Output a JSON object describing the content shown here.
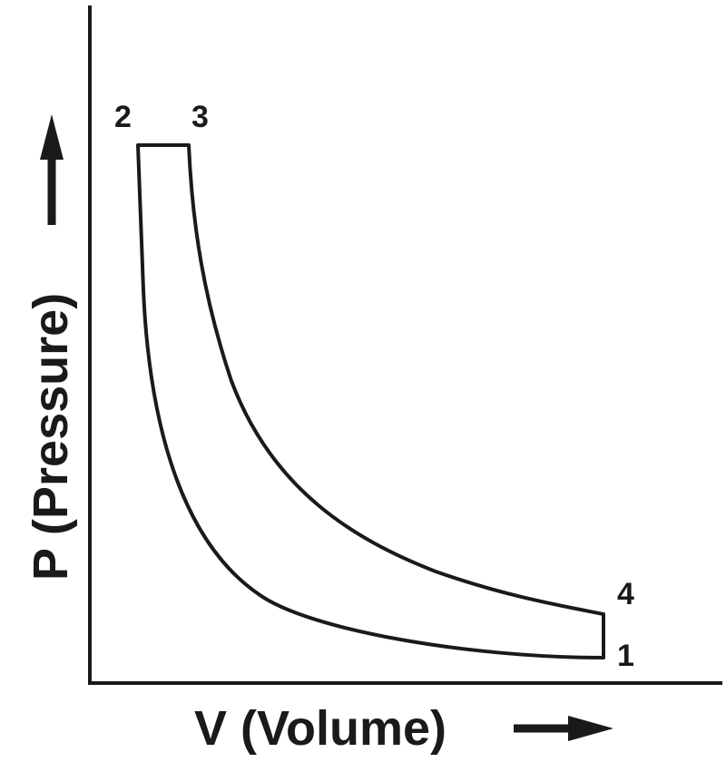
{
  "diagram": {
    "x_axis_label": "V (Volume)",
    "y_axis_label": "P (Pressure)",
    "points": [
      {
        "id": "p1",
        "label": "1"
      },
      {
        "id": "p2",
        "label": "2"
      },
      {
        "id": "p3",
        "label": "3"
      },
      {
        "id": "p4",
        "label": "4"
      }
    ],
    "colors": {
      "stroke": "#1a1a1a",
      "background": "#ffffff"
    }
  }
}
